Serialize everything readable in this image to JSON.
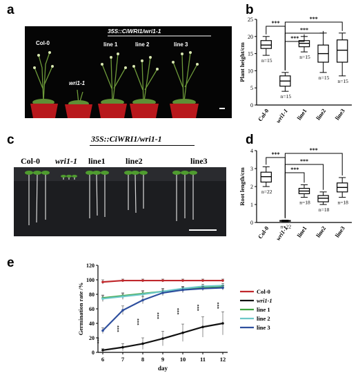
{
  "panels": {
    "a": {
      "letter": "a",
      "construct": "35S::CiWRI1/wri1-1",
      "labels": [
        "Col-0",
        "wri1-1",
        "line 1",
        "line 2",
        "line 3"
      ]
    },
    "b": {
      "letter": "b",
      "chart_data": {
        "type": "boxplot",
        "ylabel": "Plant height/cm",
        "ylim": [
          0,
          25
        ],
        "yticks": [
          0,
          5,
          10,
          15,
          20,
          25
        ],
        "categories": [
          "Col-0",
          "wri1-1",
          "line1",
          "line2",
          "line3"
        ],
        "n_labels": [
          "n=15",
          "n=15",
          "n=15",
          "n=15",
          "n=15"
        ],
        "boxes": [
          {
            "min": 14.5,
            "q1": 16.5,
            "median": 17.5,
            "q3": 18.8,
            "max": 20
          },
          {
            "min": 4,
            "q1": 5.5,
            "median": 7,
            "q3": 8.5,
            "max": 9.5
          },
          {
            "min": 15.5,
            "q1": 17,
            "median": 18,
            "q3": 18.8,
            "max": 20
          },
          {
            "min": 9.5,
            "q1": 12.5,
            "median": 15,
            "q3": 17.5,
            "max": 21
          },
          {
            "min": 8.5,
            "q1": 12.5,
            "median": 16,
            "q3": 19,
            "max": 21
          }
        ],
        "significance": [
          "***",
          "***",
          "***",
          "***"
        ]
      }
    },
    "c": {
      "letter": "c",
      "construct": "35S::CiWRI1/wri1-1",
      "labels": [
        "Col-0",
        "wri1-1",
        "line1",
        "line2",
        "line3"
      ]
    },
    "d": {
      "letter": "d",
      "chart_data": {
        "type": "boxplot",
        "ylabel": "Root length/cm",
        "ylim": [
          0,
          4
        ],
        "yticks": [
          0,
          1,
          2,
          3,
          4
        ],
        "categories": [
          "Col-0",
          "wri1-1",
          "line1",
          "line2",
          "line3"
        ],
        "n_labels": [
          "n=22",
          "n=22",
          "n=18",
          "n=18",
          "n=18"
        ],
        "boxes": [
          {
            "min": 2.0,
            "q1": 2.25,
            "median": 2.55,
            "q3": 2.8,
            "max": 3.1
          },
          {
            "min": 0.05,
            "q1": 0.07,
            "median": 0.09,
            "q3": 0.11,
            "max": 0.13
          },
          {
            "min": 1.4,
            "q1": 1.6,
            "median": 1.75,
            "q3": 1.9,
            "max": 2.1
          },
          {
            "min": 1.0,
            "q1": 1.15,
            "median": 1.35,
            "q3": 1.5,
            "max": 1.7
          },
          {
            "min": 1.4,
            "q1": 1.7,
            "median": 1.95,
            "q3": 2.2,
            "max": 2.5
          }
        ],
        "significance": [
          "***",
          "***",
          "***",
          "***"
        ]
      }
    },
    "e": {
      "letter": "e",
      "chart_data": {
        "type": "line",
        "xlabel": "day",
        "ylabel": "Germination rate /%",
        "x": [
          6,
          7,
          8,
          9,
          10,
          11,
          12
        ],
        "ylim": [
          0,
          120
        ],
        "yticks": [
          0,
          20,
          40,
          60,
          80,
          100,
          120
        ],
        "significance": "***",
        "series": [
          {
            "name": "Col-0",
            "color": "#c0282c",
            "values": [
              97,
              99,
              99,
              99,
              99,
              99,
              99
            ],
            "err": [
              3,
              2,
              2,
              2,
              2,
              2,
              2
            ]
          },
          {
            "name": "wri1-1",
            "color": "#111111",
            "values": [
              3,
              7,
              12,
              19,
              27,
              35,
              40
            ],
            "err": [
              2,
              5,
              8,
              10,
              12,
              14,
              16
            ]
          },
          {
            "name": "line 1",
            "color": "#3ea33e",
            "values": [
              75,
              78,
              81,
              84,
              87,
              89,
              90
            ],
            "err": [
              4,
              4,
              4,
              4,
              3,
              3,
              3
            ]
          },
          {
            "name": "line 2",
            "color": "#6cc8c8",
            "values": [
              74,
              77,
              80,
              84,
              88,
              91,
              92
            ],
            "err": [
              4,
              4,
              4,
              4,
              3,
              3,
              3
            ]
          },
          {
            "name": "line 3",
            "color": "#2e4f9e",
            "values": [
              30,
              58,
              72,
              82,
              86,
              88,
              89
            ],
            "err": [
              4,
              6,
              5,
              4,
              4,
              3,
              3
            ]
          }
        ]
      }
    }
  }
}
